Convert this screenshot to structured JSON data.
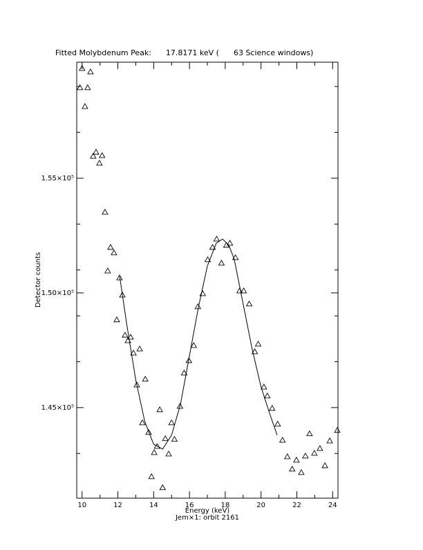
{
  "chart_data": {
    "type": "scatter",
    "title": "Fitted Molybdenum Peak:      17.8171 keV (      63 Science windows)",
    "xlabel": "Energy (keV)",
    "subtitle": "Jem×1: orbit 2161",
    "ylabel": "Detector counts",
    "xlim": [
      9.7,
      24.3
    ],
    "ylim": [
      141050,
      160060
    ],
    "xticks": [
      10,
      12,
      14,
      16,
      18,
      20,
      22,
      24
    ],
    "xminorticks": [
      11,
      13,
      15,
      17,
      19,
      21,
      23
    ],
    "yticks": [
      {
        "value": 145000,
        "label": "1.45×10⁵"
      },
      {
        "value": 150000,
        "label": "1.50×10⁵"
      },
      {
        "value": 155000,
        "label": "1.55×10⁵"
      }
    ],
    "yminorticks": [
      143000,
      147000,
      149000,
      151000,
      153000,
      157000,
      159000
    ],
    "color": "#000000",
    "series": [
      {
        "type": "scatter",
        "x": [
          9.88,
          10.0,
          10.16,
          10.31,
          10.47,
          10.62,
          10.78,
          10.97,
          11.12,
          11.28,
          11.43,
          11.59,
          11.78,
          11.94,
          12.09,
          12.25,
          12.4,
          12.56,
          12.71,
          12.87,
          13.06,
          13.22,
          13.37,
          13.53,
          13.72,
          13.88,
          14.03,
          14.19,
          14.34,
          14.5,
          14.65,
          14.84,
          15.0,
          15.16,
          15.47,
          15.7,
          15.97,
          16.24,
          16.47,
          16.74,
          17.02,
          17.29,
          17.52,
          17.79,
          18.06,
          18.26,
          18.57,
          18.8,
          19.03,
          19.34,
          19.65,
          19.84,
          20.16,
          20.35,
          20.62,
          20.93,
          21.2,
          21.47,
          21.74,
          21.98,
          22.25,
          22.48,
          22.71,
          22.98,
          23.29,
          23.57,
          23.84,
          24.26
        ],
        "values": [
          158950,
          159790,
          158130,
          158950,
          159640,
          155960,
          156140,
          155660,
          155990,
          153520,
          150960,
          151990,
          151750,
          148830,
          150660,
          149910,
          148160,
          147920,
          148070,
          147380,
          145990,
          147560,
          144340,
          146240,
          143920,
          141990,
          143040,
          143310,
          144910,
          141510,
          143650,
          142980,
          144340,
          143620,
          145060,
          146510,
          147050,
          147710,
          149400,
          149970,
          151450,
          151990,
          152350,
          151300,
          152080,
          152170,
          151540,
          150090,
          150090,
          149520,
          147440,
          147770,
          145900,
          145510,
          144970,
          144280,
          143580,
          142860,
          142320,
          142710,
          142170,
          142890,
          143860,
          143010,
          143220,
          142470,
          143550,
          144010
        ]
      },
      {
        "type": "line",
        "x": [
          12.1,
          12.5,
          13.0,
          13.5,
          14.0,
          14.5,
          15.0,
          15.5,
          16.0,
          16.5,
          17.0,
          17.5,
          17.85,
          18.2,
          18.5,
          19.0,
          19.5,
          20.0,
          20.5,
          20.9
        ],
        "values": [
          150720,
          148610,
          146200,
          144400,
          143400,
          143190,
          143800,
          145150,
          147260,
          149370,
          151170,
          152170,
          152350,
          152080,
          151480,
          149520,
          147560,
          145900,
          144700,
          143800
        ]
      }
    ]
  }
}
